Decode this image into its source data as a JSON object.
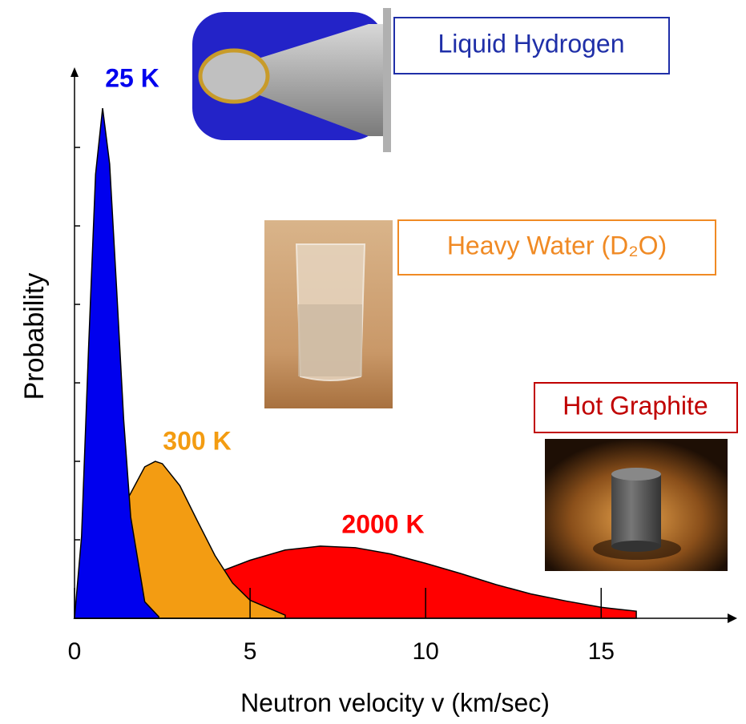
{
  "chart_data": {
    "type": "area",
    "x_label": "Neutron velocity v (km/sec)",
    "y_label": "Probability",
    "xlim": [
      0,
      18.6
    ],
    "xticks": [
      0,
      5,
      10,
      15
    ],
    "ylim": [
      0,
      6.96
    ],
    "yticks": [
      1,
      2,
      3,
      4,
      5,
      6
    ],
    "show_ytick_labels": false,
    "series": [
      {
        "name": "2000 K",
        "color": "#ff0000",
        "source": "Hot Graphite",
        "source_color": "#c00000",
        "x": [
          0,
          1,
          2,
          3,
          4,
          5,
          6,
          7,
          8,
          9,
          10,
          11,
          12,
          13,
          14,
          15,
          16
        ],
        "values": [
          0,
          0.05,
          0.18,
          0.37,
          0.57,
          0.74,
          0.87,
          0.92,
          0.9,
          0.82,
          0.7,
          0.57,
          0.43,
          0.31,
          0.22,
          0.14,
          0.09
        ]
      },
      {
        "name": "300 K",
        "color": "#f39c12",
        "source": "Heavy Water (D₂O)",
        "source_color": "#f08a24",
        "x": [
          0,
          0.5,
          1,
          1.5,
          2,
          2.3,
          2.5,
          3,
          3.5,
          4,
          4.5,
          5,
          6
        ],
        "values": [
          0,
          0.25,
          0.85,
          1.51,
          1.93,
          2.0,
          1.97,
          1.69,
          1.24,
          0.8,
          0.45,
          0.23,
          0.04
        ]
      },
      {
        "name": "25 K",
        "color": "#0000ee",
        "source": "Liquid Hydrogen",
        "source_color": "#1f2fa8",
        "x": [
          0,
          0.2,
          0.4,
          0.6,
          0.8,
          1.0,
          1.2,
          1.4,
          1.6,
          2.0,
          2.4
        ],
        "values": [
          0,
          1.04,
          3.44,
          5.66,
          6.5,
          5.79,
          4.19,
          2.53,
          1.29,
          0.21,
          0.02
        ]
      }
    ]
  }
}
